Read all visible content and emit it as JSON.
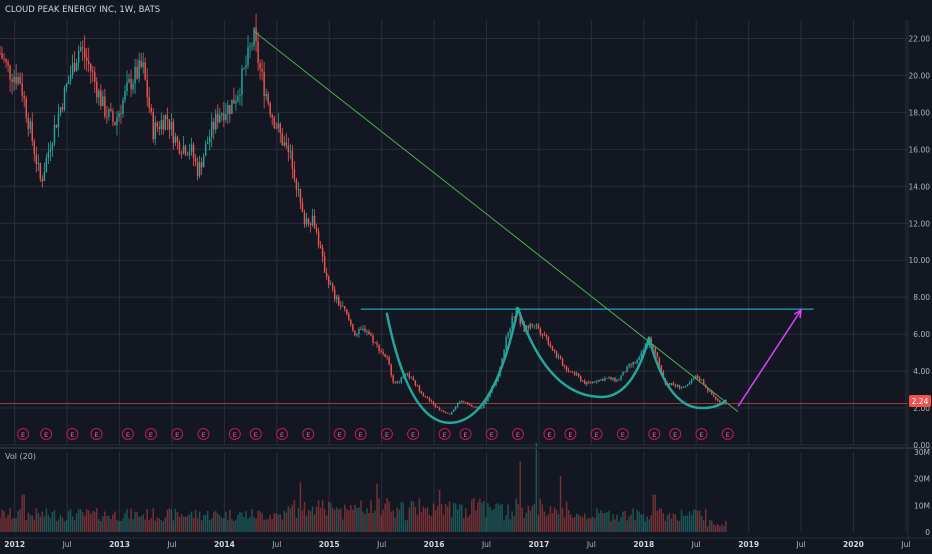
{
  "header": {
    "title": "CLOUD PEAK ENERGY INC, 1W, BATS"
  },
  "price_tag": "2.24",
  "volume": {
    "label": "Vol (20)",
    "ticks": [
      "30M",
      "20M",
      "10M",
      "0"
    ]
  },
  "earnings_marker": "E",
  "colors": {
    "background": "#131722",
    "grid": "#2a2e39",
    "up": "#26a69a",
    "down": "#ef5350",
    "trendline": "#4caf50",
    "resistance": "#26c6da",
    "pattern": "#26a69a",
    "arrow": "#e040fb",
    "price_line": "#ef5350",
    "text": "#b2b5be"
  },
  "chart_data": {
    "type": "candlestick",
    "title": "CLOUD PEAK ENERGY INC, 1W, BATS",
    "interval": "1W",
    "y_ticks": [
      0,
      2,
      4,
      6,
      8,
      10,
      12,
      14,
      16,
      18,
      20,
      22
    ],
    "y_tick_labels": [
      "0.00",
      "2.00",
      "4.00",
      "6.00",
      "8.00",
      "10.00",
      "12.00",
      "14.00",
      "16.00",
      "18.00",
      "20.00",
      "22.00"
    ],
    "ylim": [
      0,
      23
    ],
    "x_ticks": [
      {
        "t": 2012.0,
        "label": "2012"
      },
      {
        "t": 2012.5,
        "label": "Jul"
      },
      {
        "t": 2013.0,
        "label": "2013"
      },
      {
        "t": 2013.5,
        "label": "Jul"
      },
      {
        "t": 2014.0,
        "label": "2014"
      },
      {
        "t": 2014.5,
        "label": "Jul"
      },
      {
        "t": 2015.0,
        "label": "2015"
      },
      {
        "t": 2015.5,
        "label": "Jul"
      },
      {
        "t": 2016.0,
        "label": "2016"
      },
      {
        "t": 2016.5,
        "label": "Jul"
      },
      {
        "t": 2017.0,
        "label": "2017"
      },
      {
        "t": 2017.5,
        "label": "Jul"
      },
      {
        "t": 2018.0,
        "label": "2018"
      },
      {
        "t": 2018.5,
        "label": "Jul"
      },
      {
        "t": 2019.0,
        "label": "2019"
      },
      {
        "t": 2019.5,
        "label": "Jul"
      },
      {
        "t": 2020.0,
        "label": "2020"
      },
      {
        "t": 2020.5,
        "label": "Jul"
      }
    ],
    "xlim": [
      2011.86,
      2020.52
    ],
    "price_anchors": [
      [
        2011.86,
        21.2
      ],
      [
        2011.95,
        20.2
      ],
      [
        2012.05,
        19.8
      ],
      [
        2012.15,
        17.0
      ],
      [
        2012.25,
        14.2
      ],
      [
        2012.35,
        16.6
      ],
      [
        2012.5,
        19.5
      ],
      [
        2012.62,
        21.6
      ],
      [
        2012.72,
        20.4
      ],
      [
        2012.85,
        18.2
      ],
      [
        2012.95,
        17.4
      ],
      [
        2013.1,
        19.6
      ],
      [
        2013.22,
        20.5
      ],
      [
        2013.32,
        17.0
      ],
      [
        2013.45,
        17.8
      ],
      [
        2013.55,
        16.3
      ],
      [
        2013.68,
        16.0
      ],
      [
        2013.75,
        14.8
      ],
      [
        2013.85,
        16.6
      ],
      [
        2013.95,
        18.0
      ],
      [
        2014.05,
        18.3
      ],
      [
        2014.12,
        19.0
      ],
      [
        2014.2,
        20.4
      ],
      [
        2014.28,
        22.1
      ],
      [
        2014.35,
        20.0
      ],
      [
        2014.45,
        18.0
      ],
      [
        2014.55,
        16.5
      ],
      [
        2014.65,
        15.3
      ],
      [
        2014.75,
        12.2
      ],
      [
        2014.85,
        12.3
      ],
      [
        2014.95,
        9.6
      ],
      [
        2015.05,
        8.0
      ],
      [
        2015.15,
        7.2
      ],
      [
        2015.25,
        6.0
      ],
      [
        2015.35,
        6.3
      ],
      [
        2015.45,
        5.4
      ],
      [
        2015.55,
        4.7
      ],
      [
        2015.62,
        3.3
      ],
      [
        2015.75,
        3.8
      ],
      [
        2015.9,
        2.7
      ],
      [
        2016.05,
        1.9
      ],
      [
        2016.15,
        1.7
      ],
      [
        2016.25,
        2.4
      ],
      [
        2016.35,
        2.1
      ],
      [
        2016.45,
        2.0
      ],
      [
        2016.5,
        2.5
      ],
      [
        2016.6,
        3.6
      ],
      [
        2016.7,
        6.0
      ],
      [
        2016.78,
        7.4
      ],
      [
        2016.85,
        6.2
      ],
      [
        2016.95,
        6.6
      ],
      [
        2017.05,
        6.0
      ],
      [
        2017.15,
        5.0
      ],
      [
        2017.25,
        4.2
      ],
      [
        2017.35,
        3.8
      ],
      [
        2017.45,
        3.3
      ],
      [
        2017.55,
        3.5
      ],
      [
        2017.65,
        3.6
      ],
      [
        2017.75,
        3.5
      ],
      [
        2017.85,
        4.2
      ],
      [
        2017.95,
        4.6
      ],
      [
        2018.05,
        5.7
      ],
      [
        2018.12,
        4.8
      ],
      [
        2018.2,
        3.4
      ],
      [
        2018.3,
        3.2
      ],
      [
        2018.4,
        3.1
      ],
      [
        2018.5,
        3.7
      ],
      [
        2018.55,
        3.5
      ],
      [
        2018.62,
        2.9
      ],
      [
        2018.72,
        2.3
      ],
      [
        2018.8,
        2.24
      ]
    ],
    "earnings_dates": [
      2012.08,
      2012.3,
      2012.55,
      2012.78,
      2013.08,
      2013.3,
      2013.55,
      2013.8,
      2014.1,
      2014.3,
      2014.55,
      2014.8,
      2015.1,
      2015.3,
      2015.55,
      2015.8,
      2016.1,
      2016.3,
      2016.55,
      2016.8,
      2017.1,
      2017.3,
      2017.55,
      2017.8,
      2018.1,
      2018.3,
      2018.55,
      2018.8
    ],
    "volume_ylim": [
      0,
      30
    ],
    "volume_unit": "M",
    "volume_spikes": [
      [
        2012.08,
        14
      ],
      [
        2014.72,
        18
      ],
      [
        2015.45,
        16
      ],
      [
        2016.05,
        12
      ],
      [
        2016.82,
        26
      ],
      [
        2016.98,
        30
      ],
      [
        2017.2,
        18
      ],
      [
        2018.1,
        14
      ]
    ],
    "annotations": [
      {
        "type": "trendline",
        "points": [
          [
            2014.28,
            22.4
          ],
          [
            2018.9,
            1.8
          ]
        ]
      },
      {
        "type": "horizontal",
        "y": 7.35,
        "from": 2015.3,
        "to": 2019.62
      },
      {
        "type": "price_line",
        "y": 2.24
      },
      {
        "type": "arc",
        "from": [
          2015.55,
          7.1
        ],
        "bottom": [
          2016.15,
          1.2
        ],
        "to": [
          2016.8,
          7.4
        ]
      },
      {
        "type": "arc",
        "from": [
          2016.8,
          7.4
        ],
        "bottom": [
          2017.6,
          2.6
        ],
        "to": [
          2018.05,
          5.8
        ]
      },
      {
        "type": "arc",
        "from": [
          2018.05,
          5.8
        ],
        "bottom": [
          2018.55,
          2.0
        ],
        "to": [
          2018.78,
          2.4
        ]
      },
      {
        "type": "arrow",
        "from": [
          2018.9,
          2.1
        ],
        "to": [
          2019.5,
          7.3
        ]
      }
    ]
  }
}
